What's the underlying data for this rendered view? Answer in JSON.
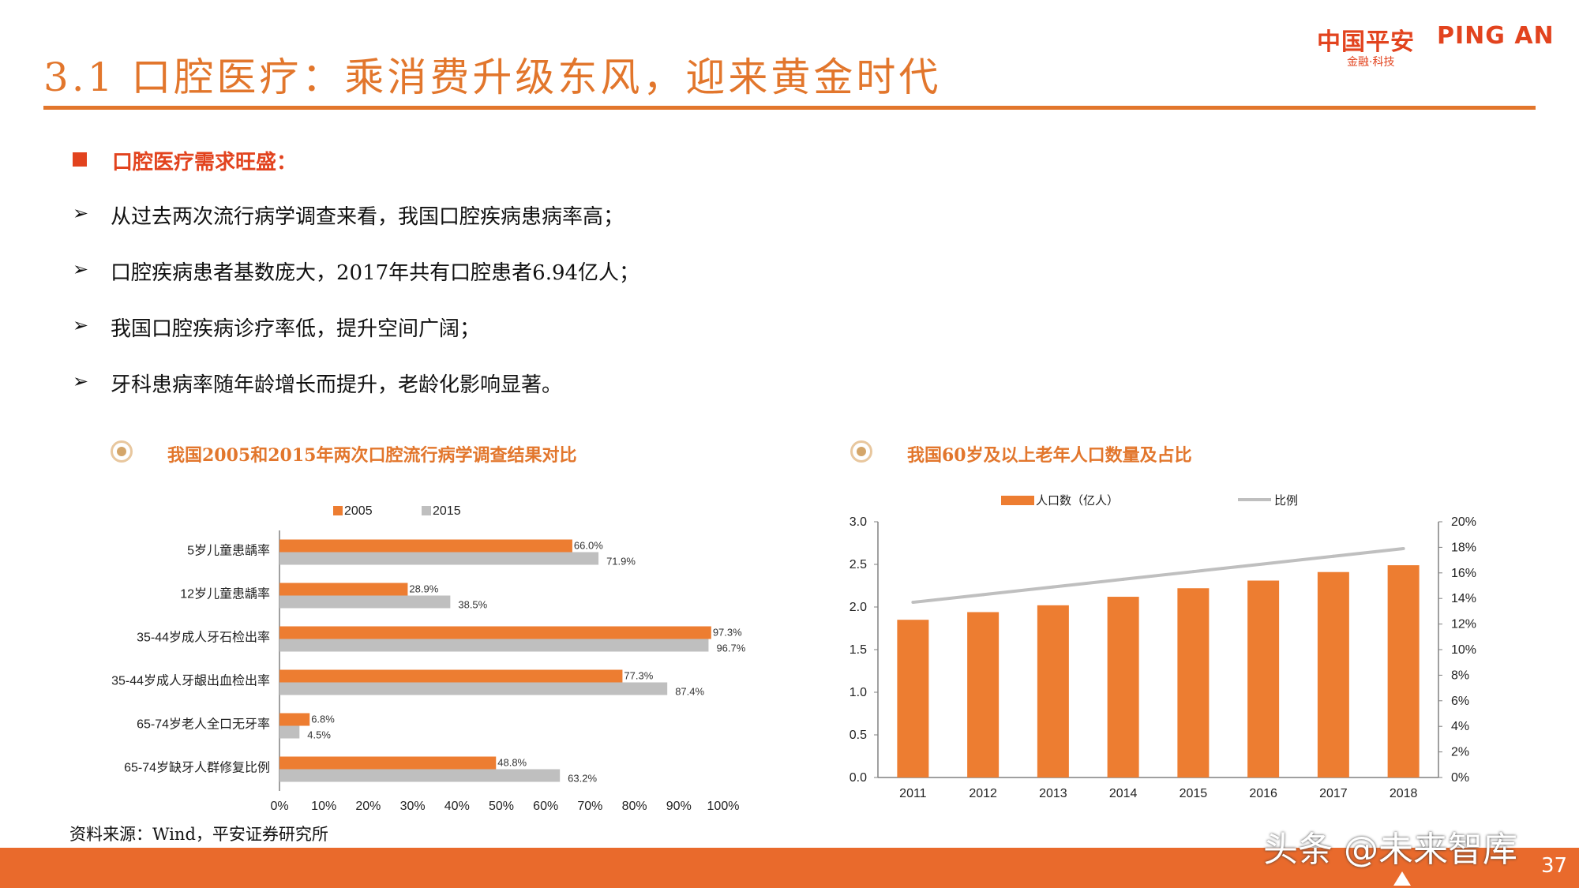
{
  "header": {
    "title": "3.1 口腔医疗：乘消费升级东风，迎来黄金时代",
    "logo_cn": "中国平安",
    "logo_en": "PING AN",
    "logo_sub": "金融·科技",
    "colors": {
      "accent": "#E2762C",
      "brand_red": "#E2431E",
      "footer": "#E96A2C"
    }
  },
  "section": {
    "label": "口腔医疗需求旺盛："
  },
  "bullets": [
    "从过去两次流行病学调查来看，我国口腔疾病患病率高；",
    "口腔疾病患者基数庞大，2017年共有口腔患者6.94亿人；",
    "我国口腔疾病诊疗率低，提升空间广阔；",
    "牙科患病率随年龄增长而提升，老龄化影响显著。"
  ],
  "left_chart_title": "我国2005和2015年两次口腔流行病学调查结果对比",
  "right_chart_title": "我国60岁及以上老年人口数量及占比",
  "chart_data": [
    {
      "type": "bar",
      "orientation": "horizontal",
      "categories": [
        "5岁儿童患龋率",
        "12岁儿童患龋率",
        "35-44岁成人牙石检出率",
        "35-44岁成人牙龈出血检出率",
        "65-74岁老人全口无牙率",
        "65-74岁缺牙人群修复比例"
      ],
      "series": [
        {
          "name": "2005",
          "color": "#ED7D31",
          "values": [
            66.0,
            28.9,
            97.3,
            77.3,
            6.8,
            48.8
          ],
          "labels": [
            "66.0%",
            "28.9%",
            "97.3%",
            "77.3%",
            "6.8%",
            "48.8%"
          ]
        },
        {
          "name": "2015",
          "color": "#BFBFBF",
          "values": [
            71.9,
            38.5,
            96.7,
            87.4,
            4.5,
            63.2
          ],
          "labels": [
            "71.9%",
            "38.5%",
            "96.7%",
            "87.4%",
            "4.5%",
            "63.2%"
          ]
        }
      ],
      "xlim": [
        0,
        100
      ],
      "xticks": [
        "0%",
        "10%",
        "20%",
        "30%",
        "40%",
        "50%",
        "60%",
        "70%",
        "80%",
        "90%",
        "100%"
      ],
      "legend": "top"
    },
    {
      "type": "bar",
      "categories": [
        "2011",
        "2012",
        "2013",
        "2014",
        "2015",
        "2016",
        "2017",
        "2018"
      ],
      "series": [
        {
          "name": "人口数（亿人）",
          "axis": "left",
          "type": "bar",
          "color": "#ED7D31",
          "values": [
            1.85,
            1.94,
            2.02,
            2.12,
            2.22,
            2.31,
            2.41,
            2.49
          ]
        },
        {
          "name": "比例",
          "axis": "right",
          "type": "line",
          "color": "#BFBFBF",
          "values": [
            13.7,
            14.3,
            14.9,
            15.5,
            16.1,
            16.7,
            17.3,
            17.9
          ]
        }
      ],
      "ylim_left": [
        0,
        3.0
      ],
      "yticks_left": [
        "0.0",
        "0.5",
        "1.0",
        "1.5",
        "2.0",
        "2.5",
        "3.0"
      ],
      "ylim_right": [
        0,
        20
      ],
      "yticks_right": [
        "0%",
        "2%",
        "4%",
        "6%",
        "8%",
        "10%",
        "12%",
        "14%",
        "16%",
        "18%",
        "20%"
      ],
      "legend": "top"
    }
  ],
  "source": "资料来源：Wind，平安证券研究所",
  "footer": {
    "watermark": "头条 @未来智库",
    "page": "37"
  }
}
